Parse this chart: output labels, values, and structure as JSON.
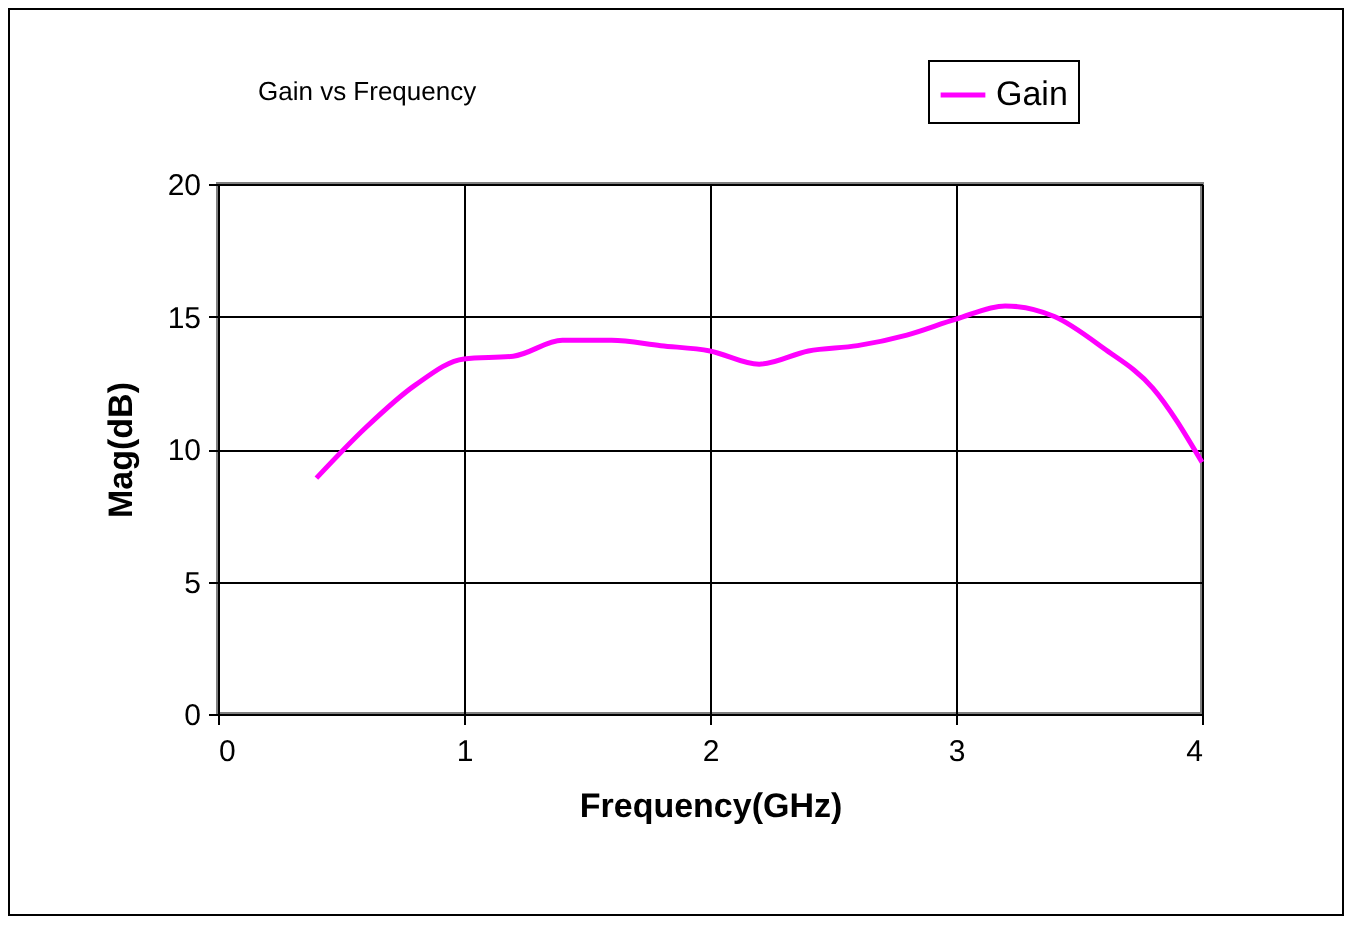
{
  "chart_data": {
    "type": "line",
    "title": "Gain vs Frequency",
    "xlabel": "Frequency(GHz)",
    "ylabel": "Mag(dB)",
    "x": [
      0.4,
      0.6,
      0.8,
      1.0,
      1.2,
      1.4,
      1.6,
      1.8,
      2.0,
      2.2,
      2.4,
      2.6,
      2.8,
      3.0,
      3.2,
      3.4,
      3.6,
      3.8,
      4.0
    ],
    "series": [
      {
        "name": "Gain",
        "color": "#ff00ff",
        "values": [
          8.9,
          10.8,
          12.4,
          13.4,
          13.5,
          14.1,
          14.1,
          13.9,
          13.7,
          13.2,
          13.7,
          13.9,
          14.3,
          14.9,
          15.4,
          15.0,
          13.8,
          12.3,
          9.5
        ]
      }
    ],
    "xlim": [
      0,
      4
    ],
    "xticks": [
      0,
      1,
      2,
      3,
      4
    ],
    "ylim": [
      0,
      20
    ],
    "yticks": [
      0,
      5,
      10,
      15,
      20
    ],
    "grid": true,
    "legend": "top right",
    "marker": "none",
    "line_style": "solid"
  }
}
